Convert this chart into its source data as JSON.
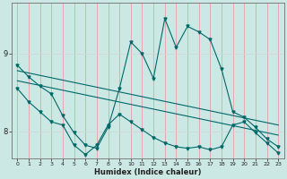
{
  "xlabel": "Humidex (Indice chaleur)",
  "bg_color": "#cce8e4",
  "grid_color_v": "#e8a0a0",
  "grid_color_h": "#d0d8d6",
  "line_color": "#006868",
  "xlim": [
    -0.5,
    23.5
  ],
  "ylim": [
    7.65,
    9.65
  ],
  "yticks": [
    8,
    9
  ],
  "xticks": [
    0,
    1,
    2,
    3,
    4,
    5,
    6,
    7,
    8,
    9,
    10,
    11,
    12,
    13,
    14,
    15,
    16,
    17,
    18,
    19,
    20,
    21,
    22,
    23
  ],
  "series1_x": [
    0,
    1,
    2,
    3,
    4,
    5,
    6,
    7,
    8,
    9,
    10,
    11,
    12,
    13,
    14,
    15,
    16,
    17,
    18,
    19,
    20,
    21,
    22,
    23
  ],
  "series1_y": [
    8.85,
    8.7,
    8.58,
    8.48,
    8.2,
    7.98,
    7.82,
    7.78,
    8.05,
    8.55,
    9.15,
    9.0,
    8.68,
    9.45,
    9.08,
    9.35,
    9.28,
    9.18,
    8.8,
    8.25,
    8.18,
    8.05,
    7.9,
    7.8
  ],
  "series2_x": [
    0,
    23
  ],
  "series2_y": [
    8.78,
    8.08
  ],
  "series3_x": [
    0,
    23
  ],
  "series3_y": [
    8.65,
    7.95
  ],
  "series4_x": [
    0,
    1,
    2,
    3,
    4,
    5,
    6,
    7,
    8,
    9,
    10,
    11,
    12,
    13,
    14,
    15,
    16,
    17,
    18,
    19,
    20,
    21,
    22,
    23
  ],
  "series4_y": [
    8.55,
    8.38,
    8.25,
    8.12,
    8.08,
    7.82,
    7.7,
    7.82,
    8.08,
    8.22,
    8.12,
    8.02,
    7.92,
    7.85,
    7.8,
    7.78,
    7.8,
    7.76,
    7.8,
    8.08,
    8.12,
    7.98,
    7.85,
    7.72
  ]
}
